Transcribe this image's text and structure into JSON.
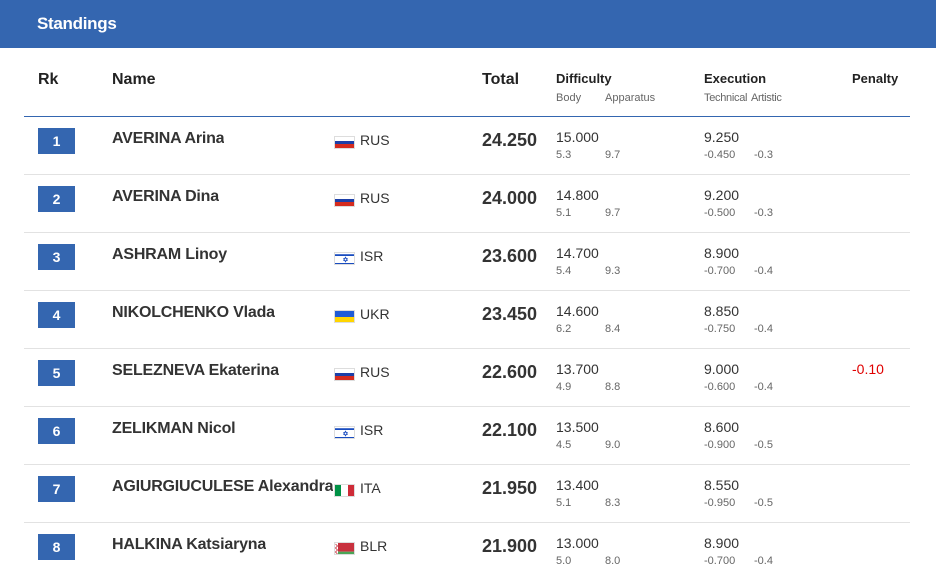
{
  "header": {
    "title": "Standings"
  },
  "columns": {
    "rank": "Rk",
    "name": "Name",
    "total": "Total",
    "difficulty": "Difficulty",
    "difficulty_body": "Body",
    "difficulty_apparatus": "Apparatus",
    "execution": "Execution",
    "execution_technical": "Technical",
    "execution_artistic": "Artistic",
    "penalty": "Penalty"
  },
  "rows": [
    {
      "rank": "1",
      "name": "AVERINA Arina",
      "nation": "RUS",
      "flag": "russia-flag-icon",
      "total": "24.250",
      "difficulty": "15.000",
      "body": "5.3",
      "apparatus": "9.7",
      "execution": "9.250",
      "technical": "-0.450",
      "artistic": "-0.3",
      "penalty": ""
    },
    {
      "rank": "2",
      "name": "AVERINA Dina",
      "nation": "RUS",
      "flag": "russia-flag-icon",
      "total": "24.000",
      "difficulty": "14.800",
      "body": "5.1",
      "apparatus": "9.7",
      "execution": "9.200",
      "technical": "-0.500",
      "artistic": "-0.3",
      "penalty": ""
    },
    {
      "rank": "3",
      "name": "ASHRAM Linoy",
      "nation": "ISR",
      "flag": "israel-flag-icon",
      "total": "23.600",
      "difficulty": "14.700",
      "body": "5.4",
      "apparatus": "9.3",
      "execution": "8.900",
      "technical": "-0.700",
      "artistic": "-0.4",
      "penalty": ""
    },
    {
      "rank": "4",
      "name": "NIKOLCHENKO Vlada",
      "nation": "UKR",
      "flag": "ukraine-flag-icon",
      "total": "23.450",
      "difficulty": "14.600",
      "body": "6.2",
      "apparatus": "8.4",
      "execution": "8.850",
      "technical": "-0.750",
      "artistic": "-0.4",
      "penalty": ""
    },
    {
      "rank": "5",
      "name": "SELEZNEVA Ekaterina",
      "nation": "RUS",
      "flag": "russia-flag-icon",
      "total": "22.600",
      "difficulty": "13.700",
      "body": "4.9",
      "apparatus": "8.8",
      "execution": "9.000",
      "technical": "-0.600",
      "artistic": "-0.4",
      "penalty": "-0.10"
    },
    {
      "rank": "6",
      "name": "ZELIKMAN Nicol",
      "nation": "ISR",
      "flag": "israel-flag-icon",
      "total": "22.100",
      "difficulty": "13.500",
      "body": "4.5",
      "apparatus": "9.0",
      "execution": "8.600",
      "technical": "-0.900",
      "artistic": "-0.5",
      "penalty": ""
    },
    {
      "rank": "7",
      "name": "AGIURGIUCULESE Alexandra",
      "nation": "ITA",
      "flag": "italy-flag-icon",
      "total": "21.950",
      "difficulty": "13.400",
      "body": "5.1",
      "apparatus": "8.3",
      "execution": "8.550",
      "technical": "-0.950",
      "artistic": "-0.5",
      "penalty": ""
    },
    {
      "rank": "8",
      "name": "HALKINA Katsiaryna",
      "nation": "BLR",
      "flag": "belarus-flag-icon",
      "total": "21.900",
      "difficulty": "13.000",
      "body": "5.0",
      "apparatus": "8.0",
      "execution": "8.900",
      "technical": "-0.700",
      "artistic": "-0.4",
      "penalty": ""
    }
  ],
  "colors": {
    "accent": "#3466b0",
    "penalty": "#e00000"
  }
}
